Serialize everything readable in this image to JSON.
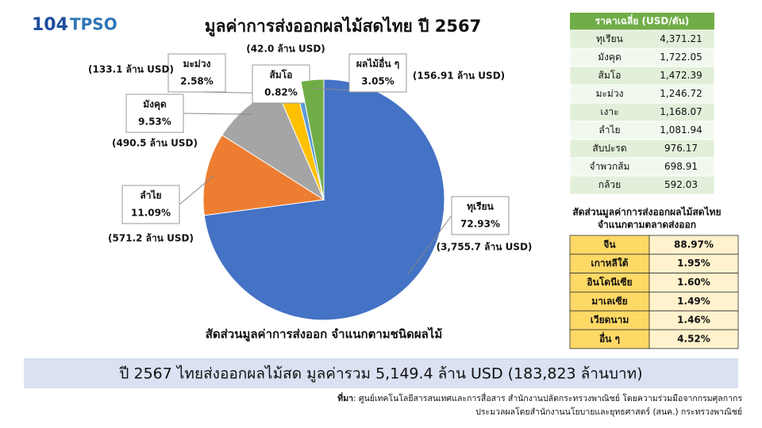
{
  "header": {
    "logo_number": "104",
    "logo_text": "TPSO"
  },
  "chart_data": {
    "type": "pie",
    "title": "มูลค่าการส่งออกผลไม้สดไทย ปี 2567",
    "subtitle": "สัดส่วนมูลค่าการส่งออก จำแนกตามชนิดผลไม้",
    "categories": [
      "ทุเรียน",
      "ลำไย",
      "มังคุด",
      "มะม่วง",
      "ส้มโอ",
      "ผลไม้อื่น ๆ"
    ],
    "values": [
      72.93,
      11.09,
      9.53,
      2.58,
      0.82,
      3.05
    ],
    "value_labels": [
      "72.93%",
      "11.09%",
      "9.53%",
      "2.58%",
      "0.82%",
      "3.05%"
    ],
    "amount_labels": [
      "(3,755.7 ล้าน USD)",
      "(571.2 ล้าน USD)",
      "(490.5 ล้าน USD)",
      "(133.1 ล้าน USD)",
      "(42.0 ล้าน USD)",
      "(156.91 ล้าน USD)"
    ],
    "colors": [
      "#4472c4",
      "#ed7d31",
      "#a5a5a5",
      "#ffc000",
      "#5b9bd5",
      "#70ad47"
    ]
  },
  "price_table": {
    "title": "ราคาเฉลี่ย (USD/ตัน)",
    "rows": [
      [
        "ทุเรียน",
        "4,371.21"
      ],
      [
        "มังคุด",
        "1,722.05"
      ],
      [
        "ส้มโอ",
        "1,472.39"
      ],
      [
        "มะม่วง",
        "1,246.72"
      ],
      [
        "เงาะ",
        "1,168.07"
      ],
      [
        "ลำไย",
        "1,081.94"
      ],
      [
        "สับปะรด",
        "976.17"
      ],
      [
        "จำพวกส้ม",
        "698.91"
      ],
      [
        "กล้วย",
        "592.03"
      ]
    ]
  },
  "market_table": {
    "title": [
      "สัดส่วนมูลค่าการส่งออกผลไม้สดไทย",
      "จำแนกตามตลาดส่งออก"
    ],
    "rows": [
      [
        "จีน",
        "88.97%"
      ],
      [
        "เกาหลีใต้",
        "1.95%"
      ],
      [
        "อินโดนีเซีย",
        "1.60%"
      ],
      [
        "มาเลเซีย",
        "1.49%"
      ],
      [
        "เวียดนาม",
        "1.46%"
      ],
      [
        "อื่น ๆ",
        "4.52%"
      ]
    ]
  },
  "summary": "ปี 2567 ไทยส่งออกผลไม้สด มูลค่ารวม 5,149.4 ล้าน USD (183,823 ล้านบาท)",
  "source": {
    "label": "ที่มา",
    "lines": [
      ": ศูนย์เทคโนโลยีสารสนเทศและการสื่อสาร สำนักงานปลัดกระทรวงพาณิชย์ โดยความร่วมมือจากกรมศุลกากร",
      "ประมวลผลโดยสำนักงานนโยบายและยุทธศาสตร์ (สนค.) กระทรวงพาณิชย์"
    ]
  }
}
